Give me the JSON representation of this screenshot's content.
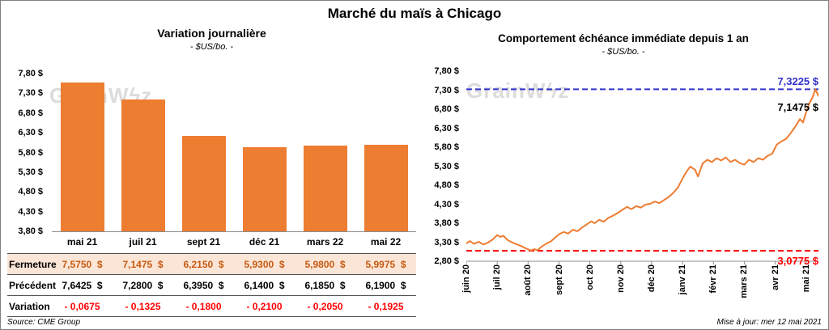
{
  "page": {
    "title": "Marché du maïs à Chicago",
    "source": "Source: CME Group",
    "updated": "Mise à jour: mer 12 mai 2021",
    "watermark": "GrainWϟz"
  },
  "table": {
    "rows": [
      {
        "id": "fermeture",
        "label": "Fermeture",
        "values": [
          "7,5750  $",
          "7,1475  $",
          "6,2150  $",
          "5,9300  $",
          "5,9800  $",
          "5,9975  $"
        ]
      },
      {
        "id": "precedent",
        "label": "Précédent",
        "values": [
          "7,6425  $",
          "7,2800  $",
          "6,3950  $",
          "6,1400  $",
          "6,1850  $",
          "6,1900  $"
        ]
      },
      {
        "id": "variation",
        "label": "Variation",
        "values": [
          "- 0,0675",
          "- 0,1325",
          "- 0,1800",
          "- 0,2100",
          "- 0,2050",
          "- 0,1925"
        ]
      }
    ]
  },
  "chart_data": [
    {
      "type": "bar",
      "title": "Variation journalière",
      "subtitle": "- $US/bo. -",
      "categories": [
        "mai 21",
        "juil 21",
        "sept 21",
        "déc 21",
        "mars 22",
        "mai 22"
      ],
      "values": [
        7.575,
        7.1475,
        6.215,
        5.93,
        5.98,
        5.9975
      ],
      "ylim": [
        3.8,
        7.8
      ],
      "ytick_labels": [
        "7,80 $",
        "7,30 $",
        "6,80 $",
        "6,30 $",
        "5,80 $",
        "5,30 $",
        "4,80 $",
        "4,30 $",
        "3,80 $"
      ],
      "bar_color": "#ED7D31",
      "grid": false,
      "legend": false
    },
    {
      "type": "line",
      "title": "Comportement échéance immédiate depuis 1 an",
      "subtitle": "- $US/bo. -",
      "x_labels": [
        "juin 20",
        "juil 20",
        "août 20",
        "sept 20",
        "oct 20",
        "nov 20",
        "déc 20",
        "janv 21",
        "févr 21",
        "mars 21",
        "avr 21",
        "mai 21"
      ],
      "ylim": [
        2.8,
        7.8
      ],
      "ytick_labels": [
        "7,80 $",
        "7,30 $",
        "6,80 $",
        "6,30 $",
        "5,80 $",
        "5,30 $",
        "4,80 $",
        "4,30 $",
        "3,80 $",
        "3,30 $",
        "2,80 $"
      ],
      "line_color": "#ED7D31",
      "t_max": 11.4,
      "high_line": {
        "value": 7.3225,
        "label": "7,3225 $",
        "color": "#3333CC"
      },
      "low_line": {
        "value": 3.0775,
        "label": "3,0775 $",
        "color": "#FF0000"
      },
      "last_label": {
        "value": 7.1475,
        "label": "7,1475 $"
      },
      "points": [
        [
          0,
          3.27
        ],
        [
          0.12,
          3.33
        ],
        [
          0.25,
          3.26
        ],
        [
          0.4,
          3.31
        ],
        [
          0.55,
          3.24
        ],
        [
          0.7,
          3.29
        ],
        [
          0.85,
          3.37
        ],
        [
          1.0,
          3.49
        ],
        [
          1.1,
          3.44
        ],
        [
          1.2,
          3.47
        ],
        [
          1.35,
          3.35
        ],
        [
          1.5,
          3.29
        ],
        [
          1.65,
          3.24
        ],
        [
          1.8,
          3.19
        ],
        [
          1.95,
          3.13
        ],
        [
          2.1,
          3.08
        ],
        [
          2.2,
          3.12
        ],
        [
          2.3,
          3.09
        ],
        [
          2.45,
          3.19
        ],
        [
          2.6,
          3.27
        ],
        [
          2.75,
          3.33
        ],
        [
          2.9,
          3.44
        ],
        [
          3.0,
          3.51
        ],
        [
          3.15,
          3.57
        ],
        [
          3.3,
          3.53
        ],
        [
          3.45,
          3.63
        ],
        [
          3.6,
          3.59
        ],
        [
          3.75,
          3.69
        ],
        [
          3.9,
          3.77
        ],
        [
          4.05,
          3.85
        ],
        [
          4.15,
          3.8
        ],
        [
          4.3,
          3.89
        ],
        [
          4.45,
          3.84
        ],
        [
          4.6,
          3.94
        ],
        [
          4.75,
          4.0
        ],
        [
          4.9,
          4.07
        ],
        [
          5.05,
          4.15
        ],
        [
          5.2,
          4.23
        ],
        [
          5.35,
          4.17
        ],
        [
          5.5,
          4.25
        ],
        [
          5.65,
          4.21
        ],
        [
          5.8,
          4.29
        ],
        [
          5.95,
          4.31
        ],
        [
          6.1,
          4.37
        ],
        [
          6.25,
          4.33
        ],
        [
          6.4,
          4.41
        ],
        [
          6.55,
          4.49
        ],
        [
          6.7,
          4.6
        ],
        [
          6.85,
          4.74
        ],
        [
          6.95,
          4.9
        ],
        [
          7.05,
          5.05
        ],
        [
          7.15,
          5.18
        ],
        [
          7.25,
          5.29
        ],
        [
          7.4,
          5.21
        ],
        [
          7.5,
          5.03
        ],
        [
          7.65,
          5.37
        ],
        [
          7.8,
          5.47
        ],
        [
          7.95,
          5.41
        ],
        [
          8.1,
          5.51
        ],
        [
          8.25,
          5.45
        ],
        [
          8.4,
          5.53
        ],
        [
          8.55,
          5.41
        ],
        [
          8.7,
          5.47
        ],
        [
          8.85,
          5.38
        ],
        [
          9.0,
          5.34
        ],
        [
          9.15,
          5.47
        ],
        [
          9.3,
          5.41
        ],
        [
          9.45,
          5.51
        ],
        [
          9.6,
          5.47
        ],
        [
          9.75,
          5.57
        ],
        [
          9.9,
          5.63
        ],
        [
          10.05,
          5.87
        ],
        [
          10.2,
          5.95
        ],
        [
          10.35,
          6.02
        ],
        [
          10.5,
          6.17
        ],
        [
          10.65,
          6.34
        ],
        [
          10.8,
          6.54
        ],
        [
          10.9,
          6.45
        ],
        [
          11.0,
          6.72
        ],
        [
          11.1,
          6.95
        ],
        [
          11.2,
          7.1
        ],
        [
          11.3,
          7.3225
        ],
        [
          11.4,
          7.1475
        ]
      ],
      "grid": false,
      "legend": false
    }
  ]
}
